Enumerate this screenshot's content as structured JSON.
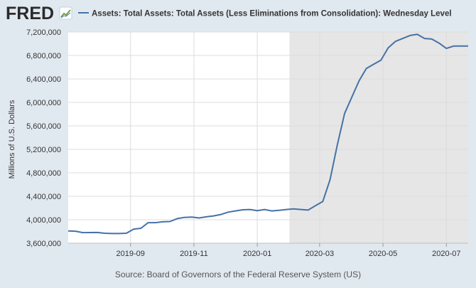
{
  "header": {
    "logo_text": "FRED",
    "legend_label": "Assets: Total Assets: Total Assets (Less Eliminations from Consolidation): Wednesday Level"
  },
  "footer": {
    "source": "Source: Board of Governors of the Federal Reserve System (US)"
  },
  "colors": {
    "background": "#e1e9f0",
    "plot": "#ffffff",
    "recession": "#e6e6e6",
    "line": "#4572a7",
    "grid": "#dcdcdc",
    "text": "#333333",
    "logo": "#2b2b2b"
  },
  "chart_data": {
    "type": "line",
    "title": "",
    "xlabel": "",
    "ylabel": "Millions of U.S. Dollars",
    "ylim": [
      3600000,
      7200000
    ],
    "xlim": [
      "2019-07-03",
      "2020-07-22"
    ],
    "grid": true,
    "legend_position": "top",
    "y_ticks": [
      3600000,
      4000000,
      4400000,
      4800000,
      5200000,
      5600000,
      6000000,
      6400000,
      6800000,
      7200000
    ],
    "y_tick_labels": [
      "3,600,000",
      "4,000,000",
      "4,400,000",
      "4,800,000",
      "5,200,000",
      "5,600,000",
      "6,000,000",
      "6,400,000",
      "6,800,000",
      "7,200,000"
    ],
    "x_ticks": [
      "2019-09-01",
      "2019-11-01",
      "2020-01-01",
      "2020-03-01",
      "2020-05-01",
      "2020-07-01"
    ],
    "x_tick_labels": [
      "2019-09",
      "2019-11",
      "2020-01",
      "2020-03",
      "2020-05",
      "2020-07"
    ],
    "shaded_regions": [
      {
        "start": "2020-02-01",
        "end": "2020-07-22",
        "label": "recession"
      }
    ],
    "series": [
      {
        "name": "Assets: Total Assets: Total Assets (Less Eliminations from Consolidation): Wednesday Level",
        "x": [
          "2019-07-03",
          "2019-07-10",
          "2019-07-17",
          "2019-07-24",
          "2019-07-31",
          "2019-08-07",
          "2019-08-14",
          "2019-08-21",
          "2019-08-28",
          "2019-09-04",
          "2019-09-11",
          "2019-09-18",
          "2019-09-25",
          "2019-10-02",
          "2019-10-09",
          "2019-10-16",
          "2019-10-23",
          "2019-10-30",
          "2019-11-06",
          "2019-11-13",
          "2019-11-20",
          "2019-11-27",
          "2019-12-04",
          "2019-12-11",
          "2019-12-18",
          "2019-12-25",
          "2020-01-01",
          "2020-01-08",
          "2020-01-15",
          "2020-01-22",
          "2020-01-29",
          "2020-02-05",
          "2020-02-12",
          "2020-02-19",
          "2020-02-26",
          "2020-03-04",
          "2020-03-11",
          "2020-03-18",
          "2020-03-25",
          "2020-04-01",
          "2020-04-08",
          "2020-04-15",
          "2020-04-22",
          "2020-04-29",
          "2020-05-06",
          "2020-05-13",
          "2020-05-20",
          "2020-05-27",
          "2020-06-03",
          "2020-06-10",
          "2020-06-17",
          "2020-06-24",
          "2020-07-01",
          "2020-07-08",
          "2020-07-15",
          "2020-07-22"
        ],
        "values": [
          3810000,
          3805000,
          3780000,
          3782000,
          3783000,
          3770000,
          3765000,
          3765000,
          3770000,
          3840000,
          3855000,
          3950000,
          3950000,
          3965000,
          3970000,
          4020000,
          4040000,
          4045000,
          4030000,
          4050000,
          4065000,
          4090000,
          4130000,
          4150000,
          4170000,
          4175000,
          4155000,
          4175000,
          4150000,
          4160000,
          4175000,
          4185000,
          4175000,
          4165000,
          4240000,
          4310000,
          4680000,
          5270000,
          5810000,
          6090000,
          6370000,
          6580000,
          6650000,
          6720000,
          6930000,
          7040000,
          7090000,
          7140000,
          7160000,
          7090000,
          7080000,
          7010000,
          6920000,
          6960000,
          6960000,
          6960000
        ]
      }
    ]
  }
}
